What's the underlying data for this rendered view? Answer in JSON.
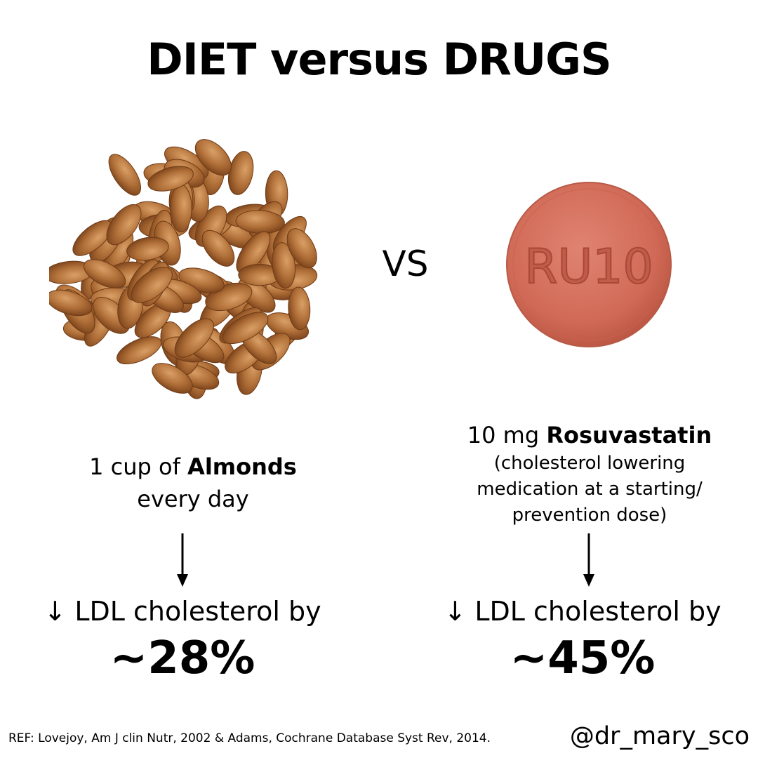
{
  "title": "DIET versus DRUGS",
  "separator": "VS",
  "diet": {
    "line1_prefix": "1 cup of ",
    "line1_bold": "Almonds",
    "line2": "every day",
    "effect": "↓ LDL cholesterol by",
    "reduction": "~28%"
  },
  "drug": {
    "line1_prefix": "10 mg ",
    "line1_bold": "Rosuvastatin",
    "note_line1": "(cholesterol lowering",
    "note_line2": "medication at a starting/",
    "note_line3": "prevention dose)",
    "imprint": "RU10",
    "effect": "↓ LDL cholesterol by",
    "reduction": "~45%"
  },
  "reference": "REF: Lovejoy, Am J clin Nutr, 2002 & Adams, Cochrane Database Syst Rev, 2014.",
  "handle": "@dr_mary_sco",
  "colors": {
    "almond_dark": "#8a4e22",
    "almond_light": "#c98a50",
    "pill": "#d26a55",
    "text": "#000000"
  },
  "icons": {
    "diet_image": "almonds-pile-icon",
    "drug_image": "pill-tablet-icon",
    "arrow": "arrow-down-icon"
  }
}
